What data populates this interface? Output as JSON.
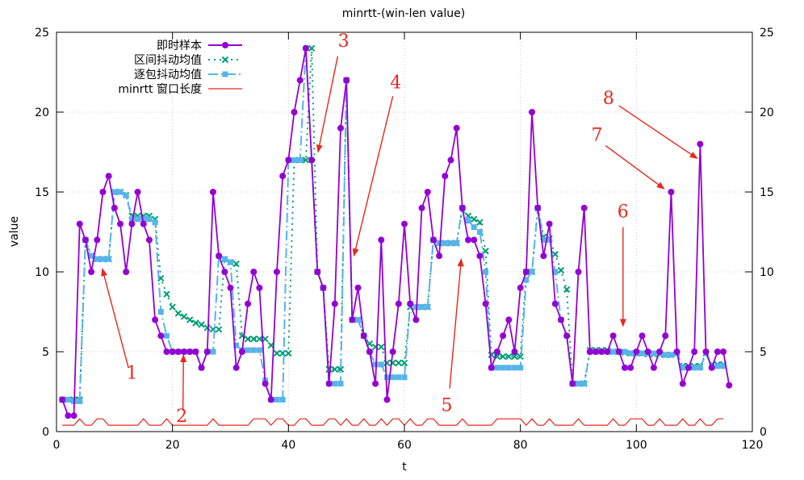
{
  "chart_data": {
    "type": "line",
    "title": "minrtt-(win-len  value)",
    "xlabel": "t",
    "ylabel": "value",
    "xlim": [
      0,
      120
    ],
    "ylim": [
      0,
      25
    ],
    "xticks": [
      0,
      20,
      40,
      60,
      80,
      100,
      120
    ],
    "yticks": [
      0,
      5,
      10,
      15,
      20,
      25
    ],
    "grid": true,
    "legend_position": "top-left",
    "series": [
      {
        "name": "即时样本",
        "color": "#9400d3",
        "style": "solid-line-circles",
        "x": [
          1,
          2,
          3,
          4,
          5,
          6,
          7,
          8,
          9,
          10,
          11,
          12,
          13,
          14,
          15,
          16,
          17,
          18,
          19,
          20,
          21,
          22,
          23,
          24,
          25,
          26,
          27,
          28,
          29,
          30,
          31,
          32,
          33,
          34,
          35,
          36,
          37,
          38,
          39,
          40,
          41,
          42,
          43,
          44,
          45,
          46,
          47,
          48,
          49,
          50,
          51,
          52,
          53,
          54,
          55,
          56,
          57,
          58,
          59,
          60,
          61,
          62,
          63,
          64,
          65,
          66,
          67,
          68,
          69,
          70,
          71,
          72,
          73,
          74,
          75,
          76,
          77,
          78,
          79,
          80,
          81,
          82,
          83,
          84,
          85,
          86,
          87,
          88,
          89,
          90,
          91,
          92,
          93,
          94,
          95,
          96,
          97,
          98,
          99,
          100,
          101,
          102,
          103,
          104,
          105,
          106,
          107,
          108,
          109,
          110,
          111,
          112,
          113,
          114,
          115,
          116
        ],
        "values": [
          2,
          1,
          1,
          13,
          12,
          10,
          12,
          15,
          16,
          14,
          13,
          10,
          13,
          15,
          13,
          12,
          7,
          6,
          5,
          5,
          5,
          5,
          5,
          5,
          4,
          5,
          15,
          11,
          10,
          9,
          4,
          5,
          8,
          10,
          9,
          3,
          2,
          10,
          16,
          17,
          20,
          22,
          24,
          17,
          10,
          9,
          3,
          8,
          19,
          22,
          7,
          9,
          6,
          5,
          3,
          12,
          2,
          5,
          8,
          13,
          8,
          7,
          14,
          15,
          12,
          11,
          16,
          17,
          19,
          14,
          12,
          12,
          11,
          8,
          4,
          5,
          6,
          7,
          5,
          9,
          10,
          20,
          14,
          11,
          13,
          8,
          7,
          6,
          3,
          10,
          14,
          5,
          5,
          5,
          5,
          6,
          5,
          4,
          4,
          5,
          6,
          5,
          4,
          5,
          6,
          15,
          5,
          3,
          4,
          5,
          18,
          5,
          4,
          5,
          5,
          2.9
        ]
      },
      {
        "name": "区间抖动均值",
        "color": "#009e73",
        "style": "dotted-line-crosses",
        "x": [
          1,
          2,
          3,
          4,
          5,
          6,
          7,
          8,
          9,
          10,
          11,
          12,
          13,
          14,
          15,
          16,
          17,
          18,
          19,
          20,
          21,
          22,
          23,
          24,
          25,
          26,
          27,
          28,
          29,
          30,
          31,
          32,
          33,
          34,
          35,
          36,
          37,
          38,
          39,
          40,
          41,
          42,
          43,
          44,
          45,
          46,
          47,
          48,
          49,
          50,
          51,
          52,
          53,
          54,
          55,
          56,
          57,
          58,
          59,
          60,
          61,
          62,
          63,
          64,
          65,
          66,
          67,
          68,
          69,
          70,
          71,
          72,
          73,
          74,
          75,
          76,
          77,
          78,
          79,
          80,
          81,
          82,
          83,
          84,
          85,
          86,
          87,
          88,
          89,
          90,
          91,
          92,
          93,
          94,
          95,
          96,
          97,
          98,
          99,
          100,
          101,
          102,
          103,
          104,
          105,
          106,
          107,
          108,
          109,
          110,
          111,
          112,
          113,
          114,
          115
        ],
        "values": [
          2,
          2,
          2,
          2,
          12,
          11,
          10.8,
          10.8,
          10.8,
          15,
          15,
          14.8,
          13.5,
          13.5,
          13.5,
          13.5,
          13.3,
          9.6,
          8.6,
          7.8,
          7.4,
          7.2,
          7,
          6.8,
          6.7,
          6.5,
          6.4,
          6.4,
          10.8,
          10.6,
          10.5,
          6,
          5.8,
          5.8,
          5.8,
          5.8,
          5.4,
          4.9,
          4.9,
          4.9,
          17,
          17,
          17,
          24,
          10,
          9,
          3.9,
          3.9,
          3.9,
          22,
          7,
          7,
          6,
          5.5,
          5.3,
          5.3,
          4.3,
          4.3,
          4.3,
          4.3,
          7.8,
          7.8,
          7.8,
          7.8,
          12,
          11.8,
          11.8,
          11.8,
          11.8,
          14,
          13.5,
          13.3,
          13.1,
          11.3,
          4.8,
          4.7,
          4.7,
          4.7,
          4.7,
          4.7,
          10,
          10,
          14,
          12.2,
          12.1,
          11.1,
          10.1,
          8.9,
          3,
          3,
          3,
          5.1,
          5.1,
          5.1,
          5.1,
          5,
          5,
          4.95,
          4.9,
          4.9,
          4.9,
          4.85,
          4.85,
          4.85,
          4.8,
          4.8,
          4.9,
          4.1,
          4.1,
          4.1,
          4.1,
          4.9,
          4.2,
          4.2,
          4.2
        ]
      },
      {
        "name": "逐包抖动均值",
        "color": "#56b4e9",
        "style": "dashdot-line-squares",
        "x": [
          1,
          2,
          3,
          4,
          5,
          6,
          7,
          8,
          9,
          10,
          11,
          12,
          13,
          14,
          15,
          16,
          17,
          18,
          19,
          20,
          21,
          22,
          23,
          24,
          25,
          26,
          27,
          28,
          29,
          30,
          31,
          32,
          33,
          34,
          35,
          36,
          37,
          38,
          39,
          40,
          41,
          42,
          43,
          44,
          45,
          46,
          47,
          48,
          49,
          50,
          51,
          52,
          53,
          54,
          55,
          56,
          57,
          58,
          59,
          60,
          61,
          62,
          63,
          64,
          65,
          66,
          67,
          68,
          69,
          70,
          71,
          72,
          73,
          74,
          75,
          76,
          77,
          78,
          79,
          80,
          81,
          82,
          83,
          84,
          85,
          86,
          87,
          88,
          89,
          90,
          91,
          92,
          93,
          94,
          95,
          96,
          97,
          98,
          99,
          100,
          101,
          102,
          103,
          104,
          105,
          106,
          107,
          108,
          109,
          110,
          111,
          112,
          113,
          114,
          115
        ],
        "values": [
          2,
          2,
          1.9,
          1.9,
          12,
          11,
          10.8,
          10.8,
          10.8,
          15,
          15,
          14.8,
          13.3,
          13.3,
          13.3,
          13.3,
          13.1,
          7.5,
          6,
          5,
          5,
          5,
          5,
          5,
          4,
          5,
          5,
          11,
          10.8,
          10.6,
          5.4,
          5.1,
          5.1,
          5.1,
          5.1,
          3.2,
          2,
          2,
          2,
          17,
          17,
          17,
          24,
          17,
          10,
          9,
          3,
          3,
          3,
          22,
          7,
          7,
          6,
          5,
          4.2,
          4.2,
          3.4,
          3.4,
          3.4,
          3.4,
          8,
          7.8,
          7.8,
          7.8,
          12,
          11.8,
          11.8,
          11.8,
          11.8,
          14,
          13.2,
          12.8,
          12.5,
          10,
          4,
          4,
          4,
          4,
          4,
          4,
          9.5,
          10,
          14,
          12,
          12,
          10,
          7,
          6,
          3,
          3,
          3,
          5,
          5,
          5,
          5,
          5,
          5,
          5,
          4.9,
          4.9,
          4.9,
          4.9,
          4.9,
          4.9,
          4.8,
          4.8,
          4.9,
          4,
          4,
          4,
          4,
          4.9,
          4.1,
          4.1,
          4.1
        ]
      },
      {
        "name": "minrtt 窗口长度",
        "color": "#e8261c",
        "style": "solid-thin",
        "x": [
          1,
          2,
          3,
          4,
          5,
          6,
          7,
          8,
          9,
          10,
          11,
          12,
          13,
          14,
          15,
          16,
          17,
          18,
          19,
          20,
          21,
          22,
          23,
          24,
          25,
          26,
          27,
          28,
          29,
          30,
          31,
          32,
          33,
          34,
          35,
          36,
          37,
          38,
          39,
          40,
          41,
          42,
          43,
          44,
          45,
          46,
          47,
          48,
          49,
          50,
          51,
          52,
          53,
          54,
          55,
          56,
          57,
          58,
          59,
          60,
          61,
          62,
          63,
          64,
          65,
          66,
          67,
          68,
          69,
          70,
          71,
          72,
          73,
          74,
          75,
          76,
          77,
          78,
          79,
          80,
          81,
          82,
          83,
          84,
          85,
          86,
          87,
          88,
          89,
          90,
          91,
          92,
          93,
          94,
          95,
          96,
          97,
          98,
          99,
          100,
          101,
          102,
          103,
          104,
          105,
          106,
          107,
          108,
          109,
          110,
          111,
          112,
          113,
          114,
          115
        ],
        "values": [
          0.4,
          0.4,
          0.4,
          0.8,
          0.4,
          0.4,
          0.8,
          0.8,
          0.4,
          0.4,
          0.4,
          0.4,
          0.4,
          0.4,
          0.8,
          0.4,
          0.4,
          0.4,
          0.8,
          0.4,
          0.4,
          0.4,
          0.4,
          0.4,
          0.4,
          0.4,
          0.8,
          0.4,
          0.4,
          0.4,
          0.4,
          0.4,
          0.4,
          0.8,
          0.8,
          0.8,
          0.4,
          0.8,
          0.8,
          0.4,
          0.4,
          0.8,
          0.8,
          0.4,
          0.4,
          0.4,
          0.8,
          0.8,
          0.4,
          0.8,
          0.4,
          0.4,
          0.8,
          0.4,
          0.4,
          0.8,
          0.4,
          0.8,
          0.8,
          0.4,
          0.8,
          0.4,
          0.4,
          0.8,
          0.8,
          0.4,
          0.4,
          0.4,
          0.4,
          0.8,
          0.4,
          0.4,
          0.4,
          0.4,
          0.4,
          0.8,
          0.8,
          0.8,
          0.8,
          0.8,
          0.4,
          0.8,
          0.4,
          0.4,
          0.8,
          0.4,
          0.4,
          0.4,
          0.4,
          0.8,
          0.4,
          0.4,
          0.4,
          0.4,
          0.4,
          0.8,
          0.4,
          0.4,
          0.8,
          0.8,
          0.8,
          0.4,
          0.4,
          0.8,
          0.4,
          0.4,
          0.4,
          0.8,
          0.4,
          0.4,
          0.8,
          0.4,
          0.4,
          0.8,
          0.8
        ]
      }
    ],
    "annotations": [
      {
        "label": "1",
        "text_x": 13,
        "text_y": 3.3,
        "arrow_from": [
          12.4,
          4
        ],
        "arrow_to": [
          7.9,
          10.2
        ]
      },
      {
        "label": "2",
        "text_x": 21.6,
        "text_y": 0.6,
        "arrow_from": [
          21.8,
          1.3
        ],
        "arrow_to": [
          21.9,
          4.8
        ]
      },
      {
        "label": "3",
        "text_x": 49.5,
        "text_y": 24.1,
        "arrow_from": [
          48.5,
          23.5
        ],
        "arrow_to": [
          45.1,
          17.5
        ]
      },
      {
        "label": "4",
        "text_x": 58.5,
        "text_y": 21.5,
        "arrow_from": [
          58,
          21
        ],
        "arrow_to": [
          51.3,
          11
        ]
      },
      {
        "label": "5",
        "text_x": 67.3,
        "text_y": 1.3,
        "arrow_from": [
          67.8,
          2.7
        ],
        "arrow_to": [
          69.8,
          10.8
        ]
      },
      {
        "label": "6",
        "text_x": 97.7,
        "text_y": 13.4,
        "arrow_from": [
          97.7,
          12.8
        ],
        "arrow_to": [
          97.7,
          6.6
        ]
      },
      {
        "label": "7",
        "text_x": 93.2,
        "text_y": 18.2,
        "arrow_from": [
          94.7,
          17.9
        ],
        "arrow_to": [
          104.8,
          15.2
        ]
      },
      {
        "label": "8",
        "text_x": 95.2,
        "text_y": 20.5,
        "arrow_from": [
          97,
          20.4
        ],
        "arrow_to": [
          110.5,
          17.1
        ]
      }
    ]
  }
}
